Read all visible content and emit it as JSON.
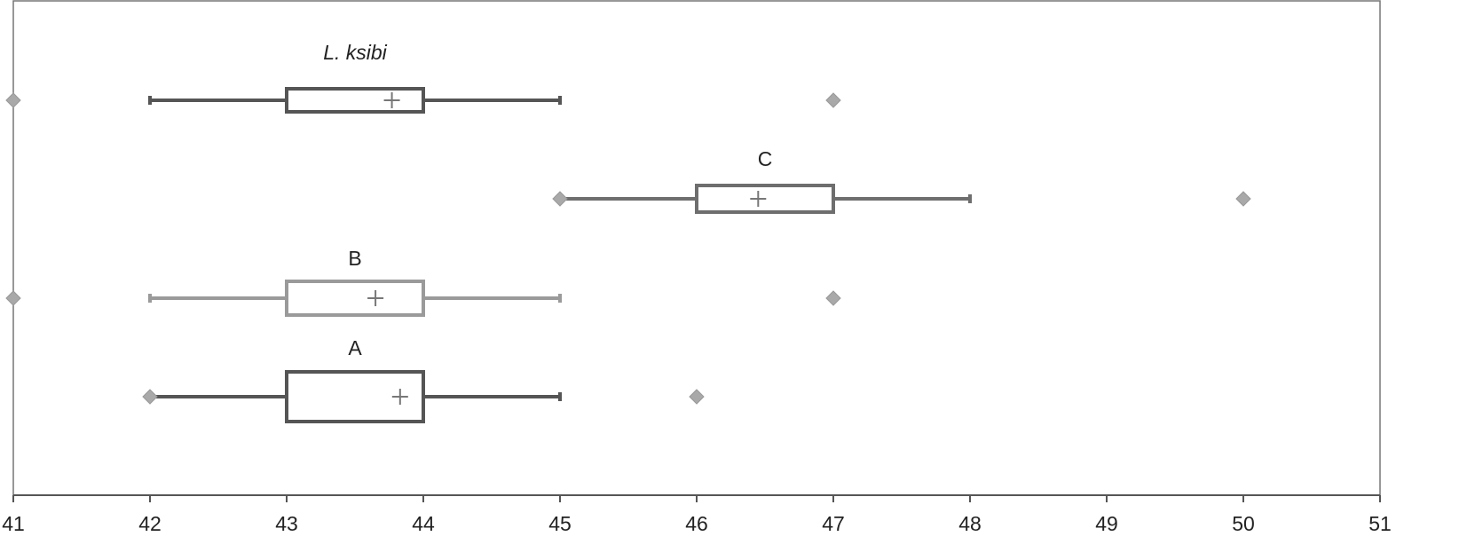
{
  "chart_data": {
    "type": "box",
    "orientation": "horizontal",
    "groups": [
      {
        "name": "L. ksibi",
        "italic": true,
        "color": "#555555",
        "min": 42,
        "q1": 43,
        "q3": 44,
        "max": 45,
        "mean": 43.77,
        "outliers": [
          41,
          47
        ]
      },
      {
        "name": "C",
        "color": "#6e6e6e",
        "min": 45,
        "q1": 46,
        "q3": 47,
        "max": 48,
        "mean": 46.45,
        "outliers": [
          45,
          50
        ]
      },
      {
        "name": "B",
        "color": "#9a9a9a",
        "min": 42,
        "q1": 43,
        "q3": 44,
        "max": 45,
        "mean": 43.65,
        "outliers": [
          41,
          47
        ]
      },
      {
        "name": "A",
        "color": "#555555",
        "min": 42,
        "q1": 43,
        "q3": 44,
        "max": 45,
        "mean": 43.83,
        "outliers": [
          42,
          46
        ]
      }
    ],
    "outlier_color": "#a9a9a9",
    "xlim": [
      41,
      51
    ],
    "xticks": [
      41,
      42,
      43,
      44,
      45,
      46,
      47,
      48,
      49,
      50,
      51
    ]
  }
}
